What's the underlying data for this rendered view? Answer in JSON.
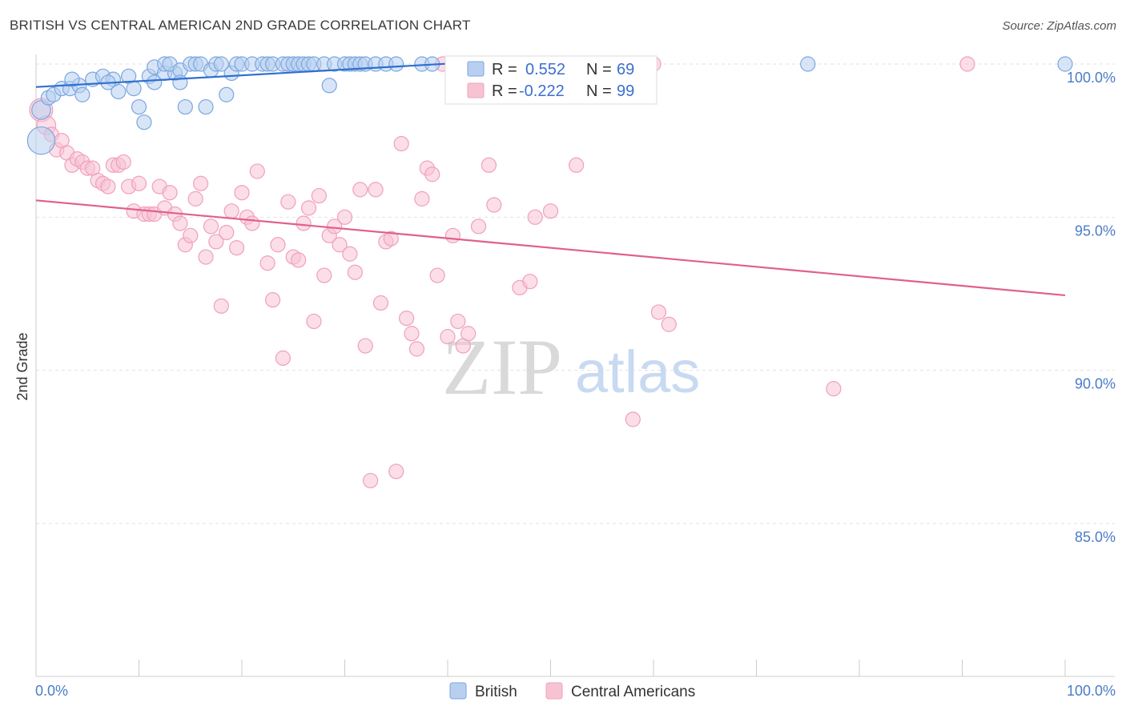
{
  "title": "BRITISH VS CENTRAL AMERICAN 2ND GRADE CORRELATION CHART",
  "source": "Source: ZipAtlas.com",
  "watermark": {
    "zip": "ZIP",
    "atlas": "atlas"
  },
  "chart_data": {
    "type": "scatter",
    "title": "BRITISH VS CENTRAL AMERICAN 2ND GRADE CORRELATION CHART",
    "xlabel": "",
    "ylabel": "2nd Grade",
    "xlim": [
      0,
      100
    ],
    "ylim": [
      80.2,
      100.8
    ],
    "x_tick_labels": [
      {
        "value": 0,
        "label": "0.0%"
      },
      {
        "value": 100,
        "label": "100.0%"
      }
    ],
    "y_tick_labels": [
      {
        "value": 100,
        "label": "100.0%"
      },
      {
        "value": 95,
        "label": "95.0%"
      },
      {
        "value": 90,
        "label": "90.0%"
      },
      {
        "value": 85,
        "label": "85.0%"
      }
    ],
    "grid": true,
    "legend_placement": "top-center",
    "series": [
      {
        "name": "British",
        "color": "#7aa6e0",
        "fill": "#b8cff0",
        "line_color": "#2e6fd0",
        "R": "0.552",
        "N": "69",
        "r_label": "R =",
        "n_label": "N =",
        "trend": {
          "x": [
            0,
            42
          ],
          "y": [
            99.25,
            100.05
          ]
        },
        "points": [
          [
            0.5,
            97.5,
            1.9
          ],
          [
            0.5,
            98.5,
            1.3
          ],
          [
            1.2,
            98.9,
            1
          ],
          [
            1.7,
            99.0,
            1
          ],
          [
            2.5,
            99.2,
            1
          ],
          [
            3.3,
            99.2,
            1
          ],
          [
            4.2,
            99.3,
            1
          ],
          [
            3.5,
            99.5,
            1
          ],
          [
            4.5,
            99.0,
            1
          ],
          [
            5.5,
            99.5,
            1
          ],
          [
            6.5,
            99.6,
            1
          ],
          [
            7.5,
            99.5,
            1
          ],
          [
            8.0,
            99.1,
            1
          ],
          [
            7.0,
            99.4,
            1
          ],
          [
            9.0,
            99.6,
            1
          ],
          [
            9.5,
            99.2,
            1
          ],
          [
            10.0,
            98.6,
            1
          ],
          [
            11.0,
            99.6,
            1
          ],
          [
            10.5,
            98.1,
            1
          ],
          [
            11.5,
            99.4,
            1
          ],
          [
            11.5,
            99.9,
            1
          ],
          [
            12.5,
            99.7,
            1
          ],
          [
            12.5,
            100.0,
            1
          ],
          [
            13.5,
            99.7,
            1
          ],
          [
            13.0,
            100.0,
            1
          ],
          [
            14.0,
            99.8,
            1
          ],
          [
            14.0,
            99.4,
            1
          ],
          [
            14.5,
            98.6,
            1
          ],
          [
            15.0,
            100.0,
            1
          ],
          [
            15.5,
            100.0,
            1
          ],
          [
            16.0,
            100.0,
            1
          ],
          [
            16.5,
            98.6,
            1
          ],
          [
            17.0,
            99.8,
            1
          ],
          [
            17.5,
            100.0,
            1
          ],
          [
            18.0,
            100.0,
            1
          ],
          [
            18.5,
            99.0,
            1
          ],
          [
            19.0,
            99.7,
            1
          ],
          [
            19.5,
            100.0,
            1
          ],
          [
            20.0,
            100.0,
            1
          ],
          [
            21.0,
            100.0,
            1
          ],
          [
            22.0,
            100.0,
            1
          ],
          [
            22.5,
            100.0,
            1
          ],
          [
            23.0,
            100.0,
            1
          ],
          [
            24.0,
            100.0,
            1
          ],
          [
            24.5,
            100.0,
            1
          ],
          [
            25.0,
            100.0,
            1
          ],
          [
            25.5,
            100.0,
            1
          ],
          [
            26.0,
            100.0,
            1
          ],
          [
            26.5,
            100.0,
            1
          ],
          [
            27.0,
            100.0,
            1
          ],
          [
            28.0,
            100.0,
            1
          ],
          [
            28.5,
            99.3,
            1
          ],
          [
            29.0,
            100.0,
            1
          ],
          [
            30.0,
            100.0,
            1
          ],
          [
            30.5,
            100.0,
            1
          ],
          [
            31.0,
            100.0,
            1
          ],
          [
            31.5,
            100.0,
            1
          ],
          [
            32.0,
            100.0,
            1
          ],
          [
            33.0,
            100.0,
            1
          ],
          [
            34.0,
            100.0,
            1
          ],
          [
            35.0,
            100.0,
            1
          ],
          [
            37.5,
            100.0,
            1
          ],
          [
            38.5,
            100.0,
            1
          ],
          [
            40.5,
            100.0,
            1
          ],
          [
            42.0,
            100.0,
            1
          ],
          [
            43.5,
            100.0,
            1
          ],
          [
            48.0,
            100.0,
            1
          ],
          [
            75.0,
            100.0,
            1
          ],
          [
            100.0,
            100.0,
            1
          ]
        ]
      },
      {
        "name": "Central Americans",
        "color": "#f0a0bb",
        "fill": "#f7c3d3",
        "line_color": "#e0608c",
        "R": "-0.222",
        "N": "99",
        "r_label": "R =",
        "n_label": "N =",
        "trend": {
          "x": [
            0,
            100
          ],
          "y": [
            95.55,
            92.45
          ]
        },
        "points": [
          [
            0.5,
            98.5,
            1.6
          ],
          [
            1.0,
            98.0,
            1.3
          ],
          [
            1.5,
            97.7,
            1
          ],
          [
            2.0,
            97.2,
            1
          ],
          [
            2.5,
            97.5,
            1
          ],
          [
            3.0,
            97.1,
            1
          ],
          [
            3.5,
            96.7,
            1
          ],
          [
            4.0,
            96.9,
            1
          ],
          [
            4.5,
            96.8,
            1
          ],
          [
            5.0,
            96.6,
            1
          ],
          [
            5.5,
            96.6,
            1
          ],
          [
            6.0,
            96.2,
            1
          ],
          [
            6.5,
            96.1,
            1
          ],
          [
            7.0,
            96.0,
            1
          ],
          [
            7.5,
            96.7,
            1
          ],
          [
            8.0,
            96.7,
            1
          ],
          [
            8.5,
            96.8,
            1
          ],
          [
            9.0,
            96.0,
            1
          ],
          [
            9.5,
            95.2,
            1
          ],
          [
            10.0,
            96.1,
            1
          ],
          [
            10.5,
            95.1,
            1
          ],
          [
            11.0,
            95.1,
            1
          ],
          [
            11.5,
            95.1,
            1
          ],
          [
            12.0,
            96.0,
            1
          ],
          [
            12.5,
            95.3,
            1
          ],
          [
            13.0,
            95.8,
            1
          ],
          [
            13.5,
            95.1,
            1
          ],
          [
            14.0,
            94.8,
            1
          ],
          [
            14.5,
            94.1,
            1
          ],
          [
            15.0,
            94.4,
            1
          ],
          [
            15.5,
            95.6,
            1
          ],
          [
            16.0,
            96.1,
            1
          ],
          [
            16.5,
            93.7,
            1
          ],
          [
            17.0,
            94.7,
            1
          ],
          [
            17.5,
            94.2,
            1
          ],
          [
            18.0,
            92.1,
            1
          ],
          [
            18.5,
            94.5,
            1
          ],
          [
            19.0,
            95.2,
            1
          ],
          [
            19.5,
            94.0,
            1
          ],
          [
            20.0,
            95.8,
            1
          ],
          [
            20.5,
            95.0,
            1
          ],
          [
            21.0,
            94.8,
            1
          ],
          [
            21.5,
            96.5,
            1
          ],
          [
            22.5,
            93.5,
            1
          ],
          [
            23.0,
            92.3,
            1
          ],
          [
            23.5,
            94.1,
            1
          ],
          [
            24.0,
            90.4,
            1
          ],
          [
            24.5,
            95.5,
            1
          ],
          [
            25.0,
            93.7,
            1
          ],
          [
            25.5,
            93.6,
            1
          ],
          [
            26.0,
            94.8,
            1
          ],
          [
            26.5,
            95.3,
            1
          ],
          [
            27.0,
            91.6,
            1
          ],
          [
            27.5,
            95.7,
            1
          ],
          [
            28.0,
            93.1,
            1
          ],
          [
            28.5,
            94.4,
            1
          ],
          [
            29.0,
            94.7,
            1
          ],
          [
            29.5,
            94.1,
            1
          ],
          [
            30.0,
            95.0,
            1
          ],
          [
            30.5,
            93.8,
            1
          ],
          [
            31.0,
            93.2,
            1
          ],
          [
            31.5,
            95.9,
            1
          ],
          [
            32.0,
            90.8,
            1
          ],
          [
            32.5,
            86.4,
            1
          ],
          [
            33.0,
            95.9,
            1
          ],
          [
            33.5,
            92.2,
            1
          ],
          [
            34.0,
            94.2,
            1
          ],
          [
            34.5,
            94.3,
            1
          ],
          [
            35.0,
            86.7,
            1
          ],
          [
            35.5,
            97.4,
            1
          ],
          [
            36.0,
            91.7,
            1
          ],
          [
            36.5,
            91.2,
            1
          ],
          [
            37.0,
            90.7,
            1
          ],
          [
            37.5,
            95.6,
            1
          ],
          [
            38.0,
            96.6,
            1
          ],
          [
            38.5,
            96.4,
            1
          ],
          [
            39.0,
            93.1,
            1
          ],
          [
            39.5,
            100.0,
            1
          ],
          [
            40.0,
            91.1,
            1
          ],
          [
            40.5,
            94.4,
            1
          ],
          [
            41.0,
            91.6,
            1
          ],
          [
            41.5,
            90.8,
            1
          ],
          [
            42.0,
            91.2,
            1
          ],
          [
            43.0,
            94.7,
            1
          ],
          [
            44.0,
            96.7,
            1
          ],
          [
            44.5,
            95.4,
            1
          ],
          [
            45.5,
            100.0,
            1
          ],
          [
            47.0,
            92.7,
            1
          ],
          [
            48.0,
            92.9,
            1
          ],
          [
            48.5,
            95.0,
            1
          ],
          [
            50.0,
            95.2,
            1
          ],
          [
            52.0,
            100.0,
            1
          ],
          [
            52.5,
            96.7,
            1
          ],
          [
            58.0,
            88.4,
            1
          ],
          [
            60.0,
            100.0,
            1
          ],
          [
            60.5,
            91.9,
            1
          ],
          [
            61.5,
            91.5,
            1
          ],
          [
            77.5,
            89.4,
            1
          ],
          [
            90.5,
            100.0,
            1
          ]
        ]
      }
    ]
  }
}
